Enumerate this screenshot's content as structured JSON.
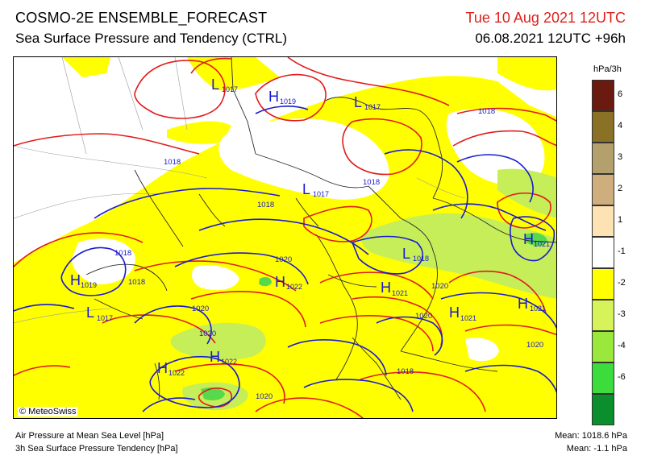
{
  "header": {
    "title_line1": "COSMO-2E ENSEMBLE_FORECAST",
    "title_line2": "Sea Surface Pressure and Tendency (CTRL)",
    "valid_time": "Tue 10 Aug 2021 12UTC",
    "run_info": "06.08.2021 12UTC +96h"
  },
  "legend": {
    "unit": "hPa/3h",
    "classes": [
      {
        "label": "6",
        "color": "#6b1a10"
      },
      {
        "label": "4",
        "color": "#8a7126"
      },
      {
        "label": "3",
        "color": "#b4a06c"
      },
      {
        "label": "2",
        "color": "#cfae7e"
      },
      {
        "label": "1",
        "color": "#fde3b4"
      },
      {
        "label": "-1",
        "color": "#ffffff"
      },
      {
        "label": "-2",
        "color": "#ffff00"
      },
      {
        "label": "-3",
        "color": "#d7f35a"
      },
      {
        "label": "-4",
        "color": "#9ae83c"
      },
      {
        "label": "-6",
        "color": "#3ddc3d"
      },
      {
        "label": "",
        "color": "#0a8f2c"
      }
    ]
  },
  "map": {
    "colors": {
      "pressure_high": "#e21b1b",
      "pressure_low": "#1a1ad0",
      "tendency_light_green": "#c6ee58",
      "tendency_green": "#56d94a",
      "yellow": "#ffff00",
      "border": "#2b2b2b"
    },
    "centers": [
      {
        "letter": "L",
        "value": "1017"
      },
      {
        "letter": "H",
        "value": "1019"
      },
      {
        "letter": "L",
        "value": "1017"
      },
      {
        "letter": "L",
        "value": "1017"
      },
      {
        "letter": "H",
        "value": "1019"
      },
      {
        "letter": "L",
        "value": "1017"
      },
      {
        "letter": "H",
        "value": "1022"
      },
      {
        "letter": "L",
        "value": "1018"
      },
      {
        "letter": "H",
        "value": "1021"
      },
      {
        "letter": "H",
        "value": "1021"
      },
      {
        "letter": "H",
        "value": "1022"
      },
      {
        "letter": "H",
        "value": "1022"
      },
      {
        "letter": "H",
        "value": "1021"
      },
      {
        "letter": "H",
        "value": "1021"
      }
    ],
    "isobar_labels": [
      "1018",
      "1018",
      "1018",
      "1018",
      "1018",
      "1018",
      "1020",
      "1020",
      "1020",
      "1020",
      "1020",
      "1020",
      "1018",
      "1020"
    ]
  },
  "credit": "© MeteoSwiss",
  "footer": {
    "line1": "Air Pressure at Mean Sea Level [hPa]",
    "line2": "3h Sea Surface Pressure Tendency [hPa]",
    "mean_pressure": "Mean: 1018.6 hPa",
    "mean_tendency": "Mean:   -1.1 hPa"
  }
}
